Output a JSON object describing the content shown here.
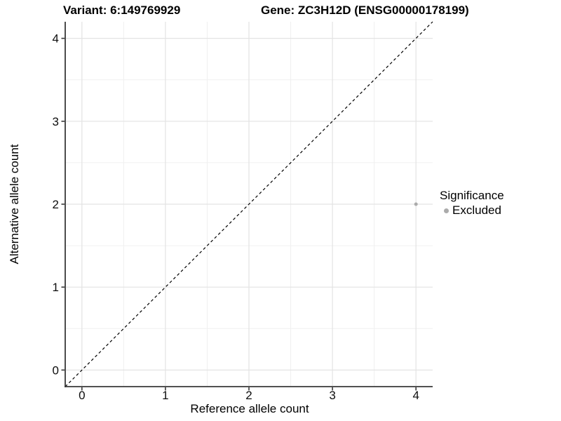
{
  "chart_data": {
    "type": "scatter",
    "title_left": "Variant: 6:149769929",
    "title_right": "Gene: ZC3H12D (ENSG00000178199)",
    "xlabel": "Reference allele count",
    "ylabel": "Alternative allele count",
    "xlim": [
      -0.2,
      4.2
    ],
    "ylim": [
      -0.2,
      4.2
    ],
    "xticks": [
      0,
      1,
      2,
      3,
      4
    ],
    "yticks": [
      0,
      1,
      2,
      3,
      4
    ],
    "minor_xticks": [
      0.5,
      1.5,
      2.5,
      3.5
    ],
    "minor_yticks": [
      0.5,
      1.5,
      2.5,
      3.5
    ],
    "grid": "major and minor, light gray on white",
    "reference_line": {
      "equation": "y = x",
      "style": "dashed",
      "color": "#000000",
      "from": [
        -0.2,
        -0.2
      ],
      "to": [
        4.2,
        4.2
      ]
    },
    "series": [
      {
        "name": "Excluded",
        "color": "#ababab",
        "points": [
          {
            "x": 4,
            "y": 2
          }
        ]
      }
    ],
    "legend": {
      "title": "Significance",
      "position": "right",
      "entries": [
        {
          "label": "Excluded",
          "color": "#ababab"
        }
      ]
    }
  },
  "style": {
    "background": "#ffffff",
    "grid_major_color": "#e3e3e3",
    "grid_minor_color": "#f0f0f0",
    "axis_line_color": "#383838",
    "tick_mark_color": "#383838",
    "text_color": "#0d0d0d"
  }
}
